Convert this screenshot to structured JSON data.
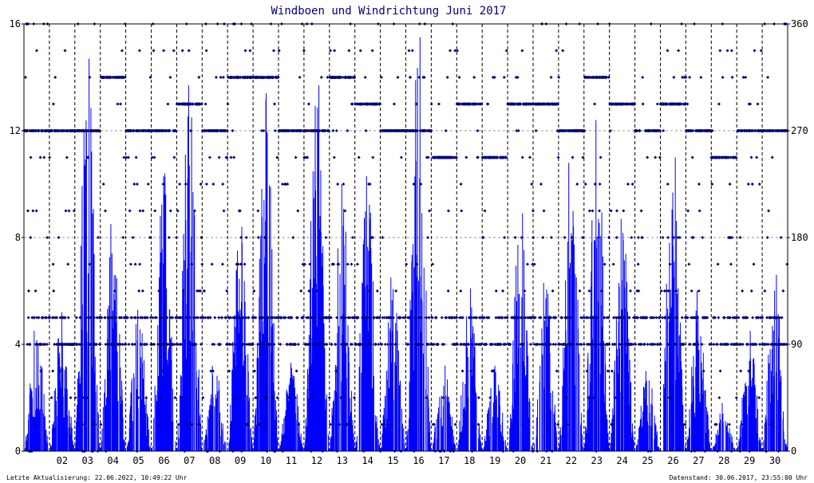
{
  "chart_data": {
    "type": "bar",
    "title": "Windboen und Windrichtung Juni 2017",
    "xlabel": "",
    "ylabel": "",
    "grid": true,
    "x_tick_labels": [
      "02",
      "03",
      "04",
      "05",
      "06",
      "07",
      "08",
      "09",
      "10",
      "11",
      "12",
      "13",
      "14",
      "15",
      "16",
      "17",
      "18",
      "19",
      "20",
      "21",
      "22",
      "23",
      "24",
      "25",
      "26",
      "27",
      "28",
      "29",
      "30"
    ],
    "y_left": {
      "ylim": [
        0,
        16
      ],
      "ticks": [
        0,
        4,
        8,
        12,
        16
      ]
    },
    "y_right": {
      "ylim": [
        0,
        360
      ],
      "ticks": [
        0,
        90,
        180,
        270,
        360
      ]
    },
    "xlim_days": [
      1,
      31
    ],
    "series": [
      {
        "kind": "bars",
        "axis": "left",
        "daily_peak_gust": [
          4.5,
          5.2,
          14.7,
          8.5,
          5.3,
          10.4,
          13.7,
          3.2,
          8.4,
          13.4,
          3.3,
          13.7,
          10.0,
          10.3,
          6.5,
          15.5,
          3.2,
          6.1,
          3.2,
          8.9,
          6.3,
          10.8,
          12.4,
          8.7,
          3.0,
          11.0,
          6.0,
          1.8,
          4.5,
          6.6
        ]
      },
      {
        "kind": "dots",
        "axis": "right",
        "direction_levels_deg": [
          0,
          22.5,
          45,
          67.5,
          90,
          112.5,
          135,
          157.5,
          180,
          202.5,
          225,
          247.5,
          270,
          292.5,
          315,
          337.5,
          360
        ]
      }
    ],
    "colors": {
      "bars": "#0000ff",
      "dots": "#000080",
      "title": "#000080",
      "grid": "#000000"
    }
  },
  "footer": {
    "left": "Letzte Aktualisierung: 22.06.2022, 10:49:22 Uhr",
    "right": "Datenstand: 30.06.2017, 23:55:00 Uhr"
  }
}
